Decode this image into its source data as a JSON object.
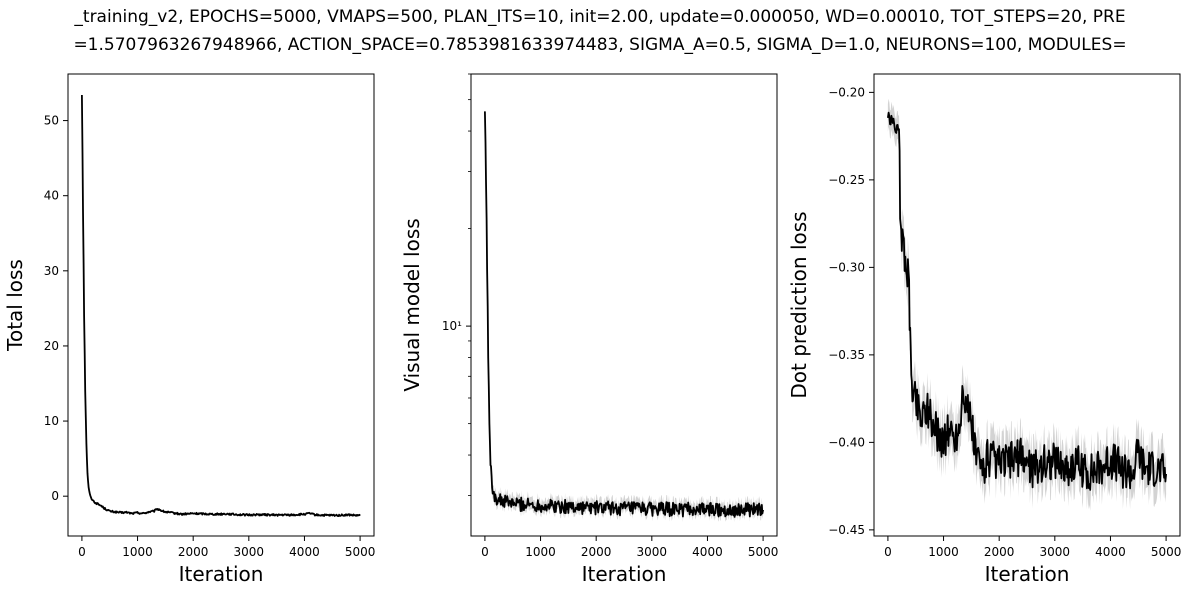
{
  "suptitle": {
    "line1": "_training_v2, EPOCHS=5000, VMAPS=500, PLAN_ITS=10, init=2.00, update=0.000050, WD=0.00010, TOT_STEPS=20, PRE",
    "line2": "=1.5707963267948966, ACTION_SPACE=0.7853981633974483, SIGMA_A=0.5, SIGMA_D=1.0, NEURONS=100, MODULES="
  },
  "colors": {
    "line": "#000000",
    "band": "#d3d3d3",
    "axes": "#000000",
    "background": "#ffffff"
  },
  "chart_data": [
    {
      "type": "line",
      "xlabel": "Iteration",
      "ylabel": "Total loss",
      "xlim": [
        -250,
        5250
      ],
      "ylim": [
        -5.3,
        56.2
      ],
      "xticks": [
        0,
        1000,
        2000,
        3000,
        4000,
        5000
      ],
      "yticks": [
        0,
        10,
        20,
        30,
        40,
        50
      ],
      "yscale": "linear",
      "band": false,
      "series": [
        {
          "x": [
            0,
            20,
            40,
            60,
            80,
            100,
            120,
            150,
            200,
            250,
            300,
            350,
            400,
            450,
            500,
            600,
            700,
            800,
            900,
            1000,
            1100,
            1200,
            1300,
            1350,
            1400,
            1450,
            1500,
            1600,
            1700,
            1800,
            2000,
            2200,
            2400,
            2600,
            2800,
            3000,
            3200,
            3400,
            3600,
            3800,
            4000,
            4100,
            4200,
            4400,
            4600,
            4800,
            5000
          ],
          "y": [
            53.4,
            38,
            24,
            14,
            7,
            3,
            1.2,
            0,
            -0.6,
            -0.9,
            -1.1,
            -1.3,
            -1.6,
            -1.8,
            -2.0,
            -2.1,
            -2.2,
            -2.15,
            -2.3,
            -2.2,
            -2.3,
            -2.1,
            -2.0,
            -1.7,
            -1.8,
            -2.0,
            -2.1,
            -2.2,
            -2.3,
            -2.4,
            -2.3,
            -2.35,
            -2.4,
            -2.35,
            -2.45,
            -2.5,
            -2.45,
            -2.5,
            -2.5,
            -2.5,
            -2.4,
            -2.3,
            -2.5,
            -2.55,
            -2.55,
            -2.5,
            -2.6
          ]
        }
      ]
    },
    {
      "type": "line",
      "xlabel": "Iteration",
      "ylabel": "Visual model loss",
      "xlim": [
        -250,
        5250
      ],
      "ylim": [
        2.25,
        60
      ],
      "xticks": [
        0,
        1000,
        2000,
        3000,
        4000,
        5000
      ],
      "yticks": [
        10
      ],
      "ytick_labels": [
        "10¹"
      ],
      "yscale": "log",
      "band": true,
      "series": [
        {
          "x": [
            0,
            20,
            40,
            60,
            80,
            100,
            120,
            150,
            200,
            250,
            300,
            400,
            500,
            700,
            1000,
            1500,
            2000,
            2500,
            3000,
            3500,
            4000,
            4500,
            5000
          ],
          "y": [
            46,
            28,
            15,
            8,
            5,
            3.8,
            3.3,
            3.1,
            2.95,
            2.9,
            2.88,
            2.86,
            2.84,
            2.82,
            2.8,
            2.77,
            2.75,
            2.74,
            2.73,
            2.72,
            2.72,
            2.71,
            2.71
          ],
          "spread": [
            0,
            0,
            0,
            0,
            0.1,
            0.15,
            0.15,
            0.15,
            0.15,
            0.15,
            0.15,
            0.15,
            0.15,
            0.15,
            0.15,
            0.15,
            0.15,
            0.15,
            0.15,
            0.15,
            0.15,
            0.15,
            0.15
          ]
        }
      ]
    },
    {
      "type": "line",
      "xlabel": "Iteration",
      "ylabel": "Dot prediction loss",
      "xlim": [
        -250,
        5250
      ],
      "ylim": [
        -0.4535,
        -0.1895
      ],
      "xticks": [
        0,
        1000,
        2000,
        3000,
        4000,
        5000
      ],
      "yticks": [
        -0.45,
        -0.4,
        -0.35,
        -0.3,
        -0.25,
        -0.2
      ],
      "yscale": "linear",
      "band": true,
      "series": [
        {
          "x": [
            0,
            50,
            100,
            150,
            200,
            220,
            250,
            300,
            350,
            380,
            400,
            420,
            450,
            500,
            600,
            700,
            800,
            900,
            1000,
            1100,
            1200,
            1300,
            1350,
            1400,
            1450,
            1500,
            1550,
            1600,
            1700,
            1800,
            2000,
            2200,
            2400,
            2600,
            2800,
            3000,
            3200,
            3400,
            3600,
            3800,
            4000,
            4200,
            4400,
            4500,
            4600,
            4800,
            5000
          ],
          "y": [
            -0.215,
            -0.216,
            -0.218,
            -0.22,
            -0.225,
            -0.262,
            -0.285,
            -0.293,
            -0.3,
            -0.31,
            -0.345,
            -0.36,
            -0.37,
            -0.375,
            -0.385,
            -0.378,
            -0.39,
            -0.395,
            -0.4,
            -0.393,
            -0.398,
            -0.39,
            -0.365,
            -0.38,
            -0.383,
            -0.39,
            -0.4,
            -0.41,
            -0.415,
            -0.408,
            -0.413,
            -0.41,
            -0.408,
            -0.415,
            -0.412,
            -0.41,
            -0.415,
            -0.412,
            -0.418,
            -0.415,
            -0.41,
            -0.415,
            -0.418,
            -0.405,
            -0.415,
            -0.415,
            -0.418
          ],
          "spread": [
            0.008,
            0.008,
            0.008,
            0.008,
            0.008,
            0.01,
            0.012,
            0.012,
            0.012,
            0.012,
            0.012,
            0.012,
            0.012,
            0.012,
            0.012,
            0.012,
            0.012,
            0.012,
            0.012,
            0.012,
            0.012,
            0.012,
            0.012,
            0.012,
            0.012,
            0.012,
            0.012,
            0.012,
            0.012,
            0.012,
            0.012,
            0.012,
            0.012,
            0.012,
            0.012,
            0.012,
            0.012,
            0.012,
            0.012,
            0.012,
            0.012,
            0.012,
            0.012,
            0.012,
            0.012,
            0.012,
            0.012
          ]
        }
      ]
    }
  ]
}
